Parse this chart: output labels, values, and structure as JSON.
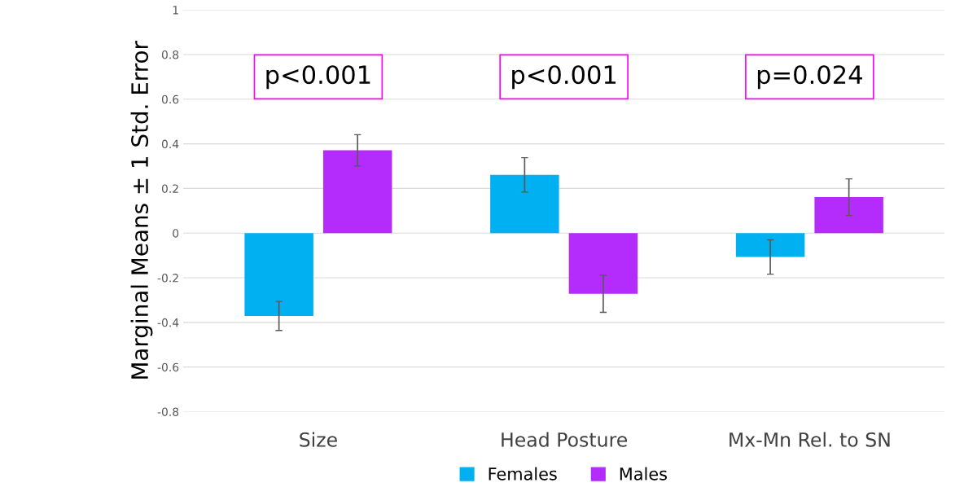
{
  "chart_data": {
    "type": "bar",
    "ylabel": "Marginal Means ± 1 Std. Error",
    "categories": [
      "Size",
      "Head Posture",
      "Mx-Mn Rel. to SN"
    ],
    "series": [
      {
        "name": "Females",
        "color": "#00b0f0",
        "values": [
          -0.371,
          0.261,
          -0.107
        ],
        "errors": [
          0.065,
          0.077,
          0.077
        ]
      },
      {
        "name": "Males",
        "color": "#b32cfc",
        "values": [
          0.371,
          -0.272,
          0.161
        ],
        "errors": [
          0.07,
          0.083,
          0.082
        ]
      }
    ],
    "ylim": [
      -0.8,
      1
    ],
    "yticks": [
      -0.8,
      -0.6,
      -0.4,
      -0.2,
      0,
      0.2,
      0.4,
      0.6,
      0.8,
      1
    ],
    "grid": "y",
    "legend": "bottom",
    "annotations": [
      "p<0.001",
      "p<0.001",
      "p=0.024"
    ]
  }
}
